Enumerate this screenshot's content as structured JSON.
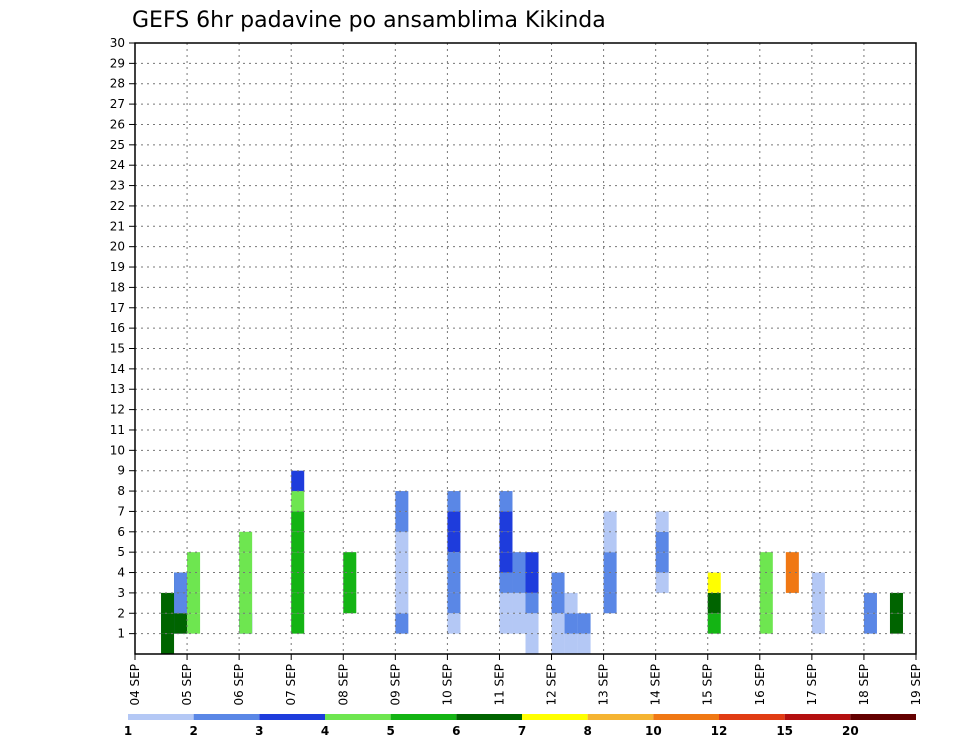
{
  "chart_data": {
    "type": "heatmap",
    "title": "GEFS 6hr padavine po ansamblima Kikinda",
    "xlabel": "",
    "ylabel": "",
    "x_tick_labels": [
      "04 SEP",
      "05 SEP",
      "06 SEP",
      "07 SEP",
      "08 SEP",
      "09 SEP",
      "10 SEP",
      "11 SEP",
      "12 SEP",
      "13 SEP",
      "14 SEP",
      "15 SEP",
      "16 SEP",
      "17 SEP",
      "18 SEP",
      "19 SEP"
    ],
    "x_range_days": [
      0,
      15
    ],
    "y_range": [
      0,
      30
    ],
    "y_tick_labels": [
      "1",
      "2",
      "3",
      "4",
      "5",
      "6",
      "7",
      "8",
      "9",
      "10",
      "11",
      "12",
      "13",
      "14",
      "15",
      "16",
      "17",
      "18",
      "19",
      "20",
      "21",
      "22",
      "23",
      "24",
      "25",
      "26",
      "27",
      "28",
      "29",
      "30"
    ],
    "grid": true,
    "colorbar": {
      "labels": [
        "1",
        "2",
        "3",
        "4",
        "5",
        "6",
        "7",
        "8",
        "10",
        "12",
        "15",
        "20"
      ],
      "colors": [
        "#b4c8f5",
        "#5a87e6",
        "#1e3cdc",
        "#6ee650",
        "#14b414",
        "#006400",
        "#ffff00",
        "#f5b432",
        "#f07814",
        "#e13c14",
        "#b40f0f",
        "#640000"
      ]
    },
    "cells": [
      [
        0.5,
        2,
        1
      ],
      [
        0.5,
        6,
        0
      ],
      [
        0.5,
        6,
        1
      ],
      [
        0.5,
        6,
        2
      ],
      [
        0.75,
        2,
        1
      ],
      [
        0.75,
        6,
        1
      ],
      [
        0.75,
        6,
        2
      ],
      [
        0.75,
        6,
        3
      ],
      [
        0.75,
        2,
        2
      ],
      [
        0.75,
        2,
        3
      ],
      [
        1.0,
        4,
        1
      ],
      [
        1.0,
        4,
        2
      ],
      [
        1.0,
        4,
        3
      ],
      [
        1.0,
        4,
        4
      ],
      [
        2.0,
        3,
        1
      ],
      [
        2.0,
        4,
        1
      ],
      [
        2.0,
        4,
        2
      ],
      [
        2.0,
        4,
        3
      ],
      [
        2.0,
        4,
        4
      ],
      [
        2.0,
        4,
        5
      ],
      [
        3.0,
        5,
        1
      ],
      [
        3.0,
        5,
        2
      ],
      [
        3.0,
        5,
        3
      ],
      [
        3.0,
        5,
        4
      ],
      [
        3.0,
        5,
        5
      ],
      [
        3.0,
        5,
        6
      ],
      [
        3.0,
        4,
        7
      ],
      [
        3.0,
        3,
        8
      ],
      [
        4.0,
        5,
        2
      ],
      [
        4.0,
        5,
        3
      ],
      [
        4.0,
        5,
        4
      ],
      [
        5.0,
        2,
        1
      ],
      [
        5.0,
        1,
        2
      ],
      [
        5.0,
        1,
        3
      ],
      [
        5.0,
        1,
        4
      ],
      [
        5.0,
        1,
        5
      ],
      [
        5.0,
        2,
        6
      ],
      [
        5.0,
        2,
        7
      ],
      [
        6.0,
        1,
        1
      ],
      [
        6.0,
        2,
        2
      ],
      [
        6.0,
        2,
        3
      ],
      [
        6.0,
        2,
        4
      ],
      [
        6.0,
        3,
        5
      ],
      [
        6.0,
        3,
        6
      ],
      [
        6.0,
        2,
        7
      ],
      [
        7.0,
        1,
        1
      ],
      [
        7.0,
        1,
        2
      ],
      [
        7.0,
        2,
        3
      ],
      [
        7.0,
        3,
        4
      ],
      [
        7.0,
        3,
        5
      ],
      [
        7.0,
        3,
        6
      ],
      [
        7.0,
        2,
        7
      ],
      [
        7.25,
        1,
        1
      ],
      [
        7.25,
        1,
        2
      ],
      [
        7.25,
        2,
        3
      ],
      [
        7.25,
        2,
        4
      ],
      [
        7.5,
        1,
        0
      ],
      [
        7.5,
        1,
        1
      ],
      [
        7.5,
        2,
        2
      ],
      [
        7.5,
        3,
        3
      ],
      [
        7.5,
        3,
        4
      ],
      [
        8.0,
        1,
        0
      ],
      [
        8.0,
        1,
        1
      ],
      [
        8.0,
        2,
        2
      ],
      [
        8.0,
        2,
        3
      ],
      [
        8.25,
        1,
        0
      ],
      [
        8.25,
        2,
        1
      ],
      [
        8.25,
        1,
        2
      ],
      [
        8.5,
        1,
        0
      ],
      [
        8.5,
        2,
        1
      ],
      [
        9.0,
        2,
        2
      ],
      [
        9.0,
        2,
        3
      ],
      [
        9.0,
        2,
        4
      ],
      [
        9.0,
        1,
        5
      ],
      [
        9.0,
        1,
        6
      ],
      [
        10.0,
        1,
        3
      ],
      [
        10.0,
        2,
        4
      ],
      [
        10.0,
        2,
        5
      ],
      [
        10.0,
        1,
        6
      ],
      [
        11.0,
        5,
        1
      ],
      [
        11.0,
        6,
        2
      ],
      [
        11.0,
        7,
        3
      ],
      [
        12.0,
        4,
        1
      ],
      [
        12.0,
        4,
        2
      ],
      [
        12.0,
        4,
        3
      ],
      [
        12.0,
        4,
        4
      ],
      [
        12.5,
        9,
        3
      ],
      [
        12.5,
        9,
        4
      ],
      [
        13.0,
        1,
        1
      ],
      [
        13.0,
        1,
        2
      ],
      [
        13.0,
        1,
        3
      ],
      [
        14.0,
        2,
        1
      ],
      [
        14.0,
        2,
        2
      ],
      [
        14.5,
        6,
        1
      ],
      [
        14.5,
        6,
        2
      ]
    ],
    "cell_note": "each cell = [x_day_offset_from_04_SEP, color_index_1_to_12, member_offset]"
  }
}
